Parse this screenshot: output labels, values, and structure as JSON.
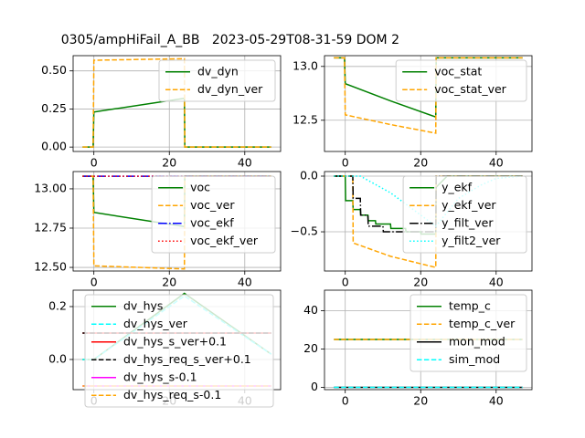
{
  "title": "0305/ampHiFail_A_BB   2023-05-29T08-31-59 DOM 2",
  "chart_data": [
    {
      "type": "line",
      "xlim": [
        -5.5,
        49.5
      ],
      "xticks": [
        0,
        20,
        40
      ],
      "ylim": [
        -0.029,
        0.6
      ],
      "yticks": [
        {
          "value": 0,
          "label": "0.00"
        },
        {
          "value": 0.25,
          "label": "0.25"
        },
        {
          "value": 0.5,
          "label": "0.50"
        }
      ],
      "grid": true,
      "legend": "upper right",
      "series": [
        {
          "name": "dv_dyn",
          "color": "#008000",
          "linestyle": "solid",
          "x": [
            -3,
            -0.2,
            0,
            24,
            24.1,
            47
          ],
          "values": [
            0,
            0,
            0.23,
            0.32,
            0,
            0
          ]
        },
        {
          "name": "dv_dyn_ver",
          "color": "#ffa500",
          "linestyle": "dashed",
          "x": [
            -3,
            -0.2,
            0,
            24,
            24.1,
            47
          ],
          "values": [
            0,
            0,
            0.57,
            0.58,
            0,
            0
          ]
        }
      ]
    },
    {
      "type": "line",
      "xlim": [
        -5.5,
        49.5
      ],
      "xticks": [
        0,
        20,
        40
      ],
      "ylim": [
        12.21,
        13.1
      ],
      "yticks": [
        {
          "value": 12.5,
          "label": "12.5"
        },
        {
          "value": 13,
          "label": "13.0"
        }
      ],
      "grid": true,
      "legend": "upper right",
      "series": [
        {
          "name": "voc_stat",
          "color": "#008000",
          "linestyle": "solid",
          "x": [
            -3,
            -0.2,
            0,
            12,
            24,
            24.1,
            47
          ],
          "values": [
            13.08,
            13.08,
            12.84,
            12.68,
            12.53,
            13.08,
            13.08
          ]
        },
        {
          "name": "voc_stat_ver",
          "color": "#ffa500",
          "linestyle": "dashed",
          "x": [
            -3,
            -0.2,
            0,
            12,
            24,
            24.1,
            47
          ],
          "values": [
            13.08,
            13.08,
            12.55,
            12.46,
            12.38,
            13.08,
            13.08
          ]
        }
      ]
    },
    {
      "type": "line",
      "xlim": [
        -5.5,
        49.5
      ],
      "xticks": [
        0,
        20,
        40
      ],
      "ylim": [
        12.477,
        13.11
      ],
      "yticks": [
        {
          "value": 12.5,
          "label": "12.50"
        },
        {
          "value": 12.75,
          "label": "12.75"
        },
        {
          "value": 13,
          "label": "13.00"
        }
      ],
      "grid": true,
      "legend": "upper right",
      "series": [
        {
          "name": "voc",
          "color": "#008000",
          "linestyle": "solid",
          "x": [
            -3,
            -0.2,
            0,
            24,
            24.1,
            47
          ],
          "values": [
            13.08,
            13.08,
            12.85,
            12.76,
            13.08,
            13.08
          ]
        },
        {
          "name": "voc_ver",
          "color": "#ffa500",
          "linestyle": "dashed",
          "x": [
            -3,
            -0.2,
            0,
            24,
            24.1,
            47
          ],
          "values": [
            13.08,
            13.08,
            12.51,
            12.49,
            13.08,
            13.08
          ]
        },
        {
          "name": "voc_ekf",
          "color": "#0000ff",
          "linestyle": "dashdot",
          "x": [
            -3,
            47
          ],
          "values": [
            13.08,
            13.08
          ]
        },
        {
          "name": "voc_ekf_ver",
          "color": "#ff0000",
          "linestyle": "dotted",
          "x": [
            -3,
            47
          ],
          "values": [
            13.08,
            13.08
          ]
        }
      ]
    },
    {
      "type": "line",
      "xlim": [
        -5.5,
        49.5
      ],
      "xticks": [
        0,
        20,
        40
      ],
      "ylim": [
        -0.852,
        0.041
      ],
      "yticks": [
        {
          "value": -0.5,
          "label": "−0.5"
        },
        {
          "value": 0,
          "label": "0.0"
        }
      ],
      "grid": true,
      "legend": "upper right",
      "series": [
        {
          "name": "y_ekf",
          "color": "#008000",
          "linestyle": "solid",
          "x": [
            -3,
            0,
            0.1,
            2,
            2.1,
            4,
            4.1,
            6,
            6.1,
            8,
            8.1,
            12,
            12.1,
            16,
            16.1,
            20,
            20.1,
            24,
            24.1,
            27,
            47
          ],
          "values": [
            0,
            0,
            -0.22,
            -0.22,
            -0.3,
            -0.3,
            -0.35,
            -0.35,
            -0.4,
            -0.4,
            -0.43,
            -0.43,
            -0.47,
            -0.47,
            -0.5,
            -0.5,
            -0.52,
            -0.52,
            -0.1,
            0,
            0
          ]
        },
        {
          "name": "y_ekf_ver",
          "color": "#ffa500",
          "linestyle": "dashed",
          "x": [
            -3,
            2,
            2.1,
            12,
            24,
            24.1,
            47
          ],
          "values": [
            0,
            0,
            -0.6,
            -0.72,
            -0.82,
            0,
            0
          ]
        },
        {
          "name": "y_filt_ver",
          "color": "#000000",
          "linestyle": "dashdot",
          "x": [
            -3,
            2,
            2.1,
            4,
            4.1,
            6,
            6.1,
            10,
            10.1,
            24,
            24.1,
            47
          ],
          "values": [
            0,
            0,
            -0.2,
            -0.2,
            -0.35,
            -0.35,
            -0.45,
            -0.45,
            -0.5,
            -0.5,
            0,
            0
          ]
        },
        {
          "name": "y_filt2_ver",
          "color": "#00ffff",
          "linestyle": "dotted",
          "x": [
            -3,
            4,
            12,
            20,
            24,
            30,
            36,
            40,
            47
          ],
          "values": [
            0,
            0,
            -0.15,
            -0.35,
            -0.45,
            -0.2,
            -0.08,
            -0.02,
            0
          ]
        }
      ]
    },
    {
      "type": "line",
      "xlim": [
        -5.5,
        49.5
      ],
      "xticks": [
        0,
        20,
        40
      ],
      "ylim": [
        -0.114,
        0.262
      ],
      "yticks": [
        {
          "value": 0,
          "label": "0.0"
        },
        {
          "value": 0.2,
          "label": "0.2"
        }
      ],
      "grid": true,
      "legend": "upper left",
      "series": [
        {
          "name": "dv_hys",
          "color": "#008000",
          "linestyle": "solid",
          "x": [
            -3,
            0,
            24,
            47
          ],
          "values": [
            0,
            0,
            0.25,
            0.02
          ]
        },
        {
          "name": "dv_hys_ver",
          "color": "#00ffff",
          "linestyle": "dashed",
          "x": [
            -3,
            0,
            24,
            47
          ],
          "values": [
            0,
            0,
            0.24,
            0.02
          ]
        },
        {
          "name": "dv_hys_s_ver+0.1",
          "color": "#ff0000",
          "linestyle": "solid",
          "x": [
            -3,
            47
          ],
          "values": [
            0.1,
            0.1
          ]
        },
        {
          "name": "dv_hys_req_s_ver+0.1",
          "color": "#000000",
          "linestyle": "dashed",
          "x": [
            -3,
            47
          ],
          "values": [
            0.1,
            0.1
          ]
        },
        {
          "name": "dv_hys_s-0.1",
          "color": "#ff00ff",
          "linestyle": "solid",
          "x": [
            -3,
            47
          ],
          "values": [
            -0.1,
            -0.1
          ]
        },
        {
          "name": "dv_hys_req_s-0.1",
          "color": "#ffa500",
          "linestyle": "dashed",
          "x": [
            -3,
            47
          ],
          "values": [
            -0.1,
            -0.1
          ]
        }
      ]
    },
    {
      "type": "line",
      "xlim": [
        -5.5,
        49.5
      ],
      "xticks": [
        0,
        20,
        40
      ],
      "ylim": [
        -1.2,
        50.7
      ],
      "yticks": [
        0,
        20,
        40
      ],
      "grid": true,
      "legend": "upper right",
      "series": [
        {
          "name": "temp_c",
          "color": "#008000",
          "linestyle": "solid",
          "x": [
            -3,
            47
          ],
          "values": [
            25,
            25
          ]
        },
        {
          "name": "temp_c_ver",
          "color": "#ffa500",
          "linestyle": "dashed",
          "x": [
            -3,
            47
          ],
          "values": [
            25,
            25
          ]
        },
        {
          "name": "mon_mod",
          "color": "#000000",
          "linestyle": "solid",
          "x": [
            -3,
            47
          ],
          "values": [
            0,
            0
          ]
        },
        {
          "name": "sim_mod",
          "color": "#00ffff",
          "linestyle": "dashed",
          "x": [
            -3,
            47
          ],
          "values": [
            0,
            0
          ]
        }
      ]
    }
  ]
}
